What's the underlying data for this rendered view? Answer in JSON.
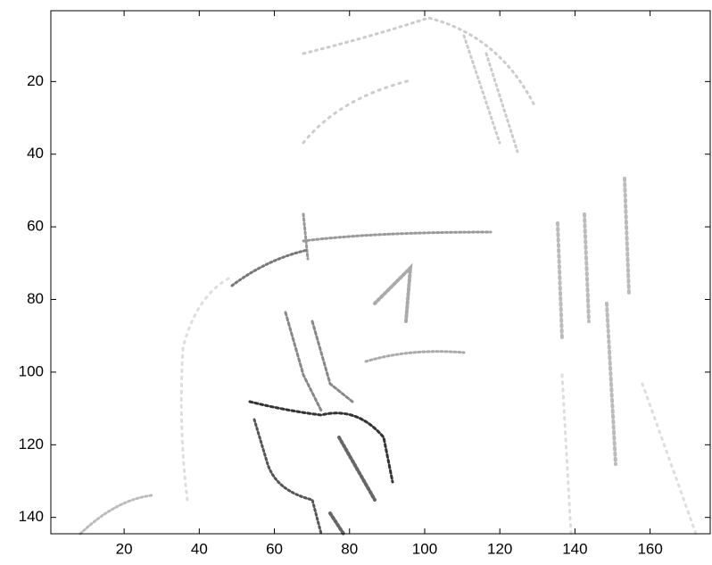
{
  "chart_data": {
    "type": "image",
    "xlim": [
      0.5,
      176
    ],
    "ylim": [
      0.5,
      144.5
    ],
    "y_reversed": true,
    "xticks": [
      20,
      40,
      60,
      80,
      100,
      120,
      140,
      160
    ],
    "yticks": [
      20,
      40,
      60,
      80,
      100,
      120,
      140
    ]
  }
}
